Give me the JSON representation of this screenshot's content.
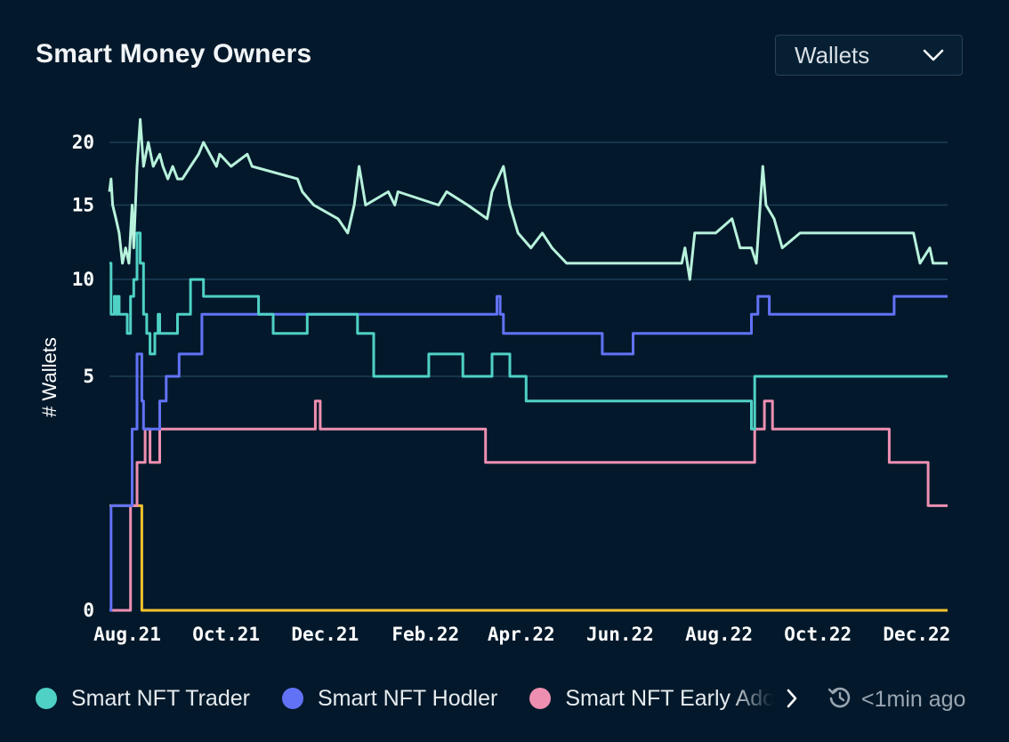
{
  "title": "Smart Money Owners",
  "dropdown": {
    "selected": "Wallets",
    "icon": "chevron-down-icon"
  },
  "refresh": {
    "text": "<1min ago",
    "icon": "refresh-clock-icon"
  },
  "legend_next_icon": "chevron-right-icon",
  "colors": {
    "background": "#03192b",
    "grid": "#1d3d55",
    "Smart Money (total)": "#b8f2dc",
    "Smart NFT Trader": "#4fd1c5",
    "Smart NFT Hodler": "#6272f7",
    "Smart NFT Early Adopter": "#ee8fb1",
    "Other": "#f2c12e"
  },
  "chart_data": {
    "type": "line",
    "title": "Smart Money Owners",
    "xlabel": "",
    "ylabel": "# Wallets",
    "x_type": "date",
    "xlim": [
      "2021-08-01",
      "2022-12-31"
    ],
    "ylim": [
      0,
      20
    ],
    "y_scale": "sqrt",
    "y_ticks": [
      0,
      5,
      10,
      15,
      20
    ],
    "x_ticks": [
      "Aug.21",
      "Oct.21",
      "Dec.21",
      "Feb.22",
      "Apr.22",
      "Jun.22",
      "Aug.22",
      "Oct.22",
      "Dec.22"
    ],
    "x_tick_dates": [
      "2021-08-01",
      "2021-10-01",
      "2021-12-01",
      "2022-02-01",
      "2022-04-01",
      "2022-06-01",
      "2022-08-01",
      "2022-10-01",
      "2022-12-01"
    ],
    "grid": true,
    "legend": "bottom",
    "series": [
      {
        "id": "total",
        "step": false,
        "points": [
          [
            "2021-08-01",
            16
          ],
          [
            "2021-08-02",
            17
          ],
          [
            "2021-08-03",
            15
          ],
          [
            "2021-08-05",
            14
          ],
          [
            "2021-08-07",
            13
          ],
          [
            "2021-08-09",
            11
          ],
          [
            "2021-08-11",
            12
          ],
          [
            "2021-08-13",
            11
          ],
          [
            "2021-08-15",
            15
          ],
          [
            "2021-08-16",
            12
          ],
          [
            "2021-08-18",
            18
          ],
          [
            "2021-08-20",
            22
          ],
          [
            "2021-08-22",
            18
          ],
          [
            "2021-08-25",
            20
          ],
          [
            "2021-08-28",
            18
          ],
          [
            "2021-09-01",
            19
          ],
          [
            "2021-09-03",
            18
          ],
          [
            "2021-09-06",
            17
          ],
          [
            "2021-09-09",
            18
          ],
          [
            "2021-09-12",
            17
          ],
          [
            "2021-09-15",
            17
          ],
          [
            "2021-09-20",
            18
          ],
          [
            "2021-09-25",
            19
          ],
          [
            "2021-09-28",
            20
          ],
          [
            "2021-10-06",
            18
          ],
          [
            "2021-10-08",
            19
          ],
          [
            "2021-10-15",
            18
          ],
          [
            "2021-10-25",
            19
          ],
          [
            "2021-10-28",
            18
          ],
          [
            "2021-11-25",
            17
          ],
          [
            "2021-11-28",
            16
          ],
          [
            "2021-12-05",
            15
          ],
          [
            "2021-12-20",
            14
          ],
          [
            "2021-12-26",
            13
          ],
          [
            "2021-12-30",
            15
          ],
          [
            "2022-01-02",
            18
          ],
          [
            "2022-01-06",
            15
          ],
          [
            "2022-01-20",
            16
          ],
          [
            "2022-01-24",
            15
          ],
          [
            "2022-01-26",
            16
          ],
          [
            "2022-02-20",
            15
          ],
          [
            "2022-02-25",
            16
          ],
          [
            "2022-03-10",
            15
          ],
          [
            "2022-03-22",
            14
          ],
          [
            "2022-03-25",
            16
          ],
          [
            "2022-04-01",
            18
          ],
          [
            "2022-04-05",
            15
          ],
          [
            "2022-04-10",
            13
          ],
          [
            "2022-04-18",
            12
          ],
          [
            "2022-04-25",
            13
          ],
          [
            "2022-05-01",
            12
          ],
          [
            "2022-05-10",
            11
          ],
          [
            "2022-07-20",
            11
          ],
          [
            "2022-07-22",
            12
          ],
          [
            "2022-07-25",
            10
          ],
          [
            "2022-07-28",
            13
          ],
          [
            "2022-08-10",
            13
          ],
          [
            "2022-08-20",
            14
          ],
          [
            "2022-08-25",
            12
          ],
          [
            "2022-09-01",
            12
          ],
          [
            "2022-09-04",
            11
          ],
          [
            "2022-09-08",
            18
          ],
          [
            "2022-09-10",
            15
          ],
          [
            "2022-09-15",
            14
          ],
          [
            "2022-09-20",
            12
          ],
          [
            "2022-10-01",
            13
          ],
          [
            "2022-12-10",
            13
          ],
          [
            "2022-12-14",
            11
          ],
          [
            "2022-12-20",
            12
          ],
          [
            "2022-12-22",
            11
          ]
        ]
      },
      {
        "name": "Smart NFT Trader",
        "step": true,
        "points": [
          [
            "2021-08-01",
            11
          ],
          [
            "2021-08-02",
            8
          ],
          [
            "2021-08-04",
            9
          ],
          [
            "2021-08-05",
            8
          ],
          [
            "2021-08-06",
            9
          ],
          [
            "2021-08-07",
            8
          ],
          [
            "2021-08-10",
            8
          ],
          [
            "2021-08-12",
            7
          ],
          [
            "2021-08-14",
            9
          ],
          [
            "2021-08-16",
            10
          ],
          [
            "2021-08-18",
            13
          ],
          [
            "2021-08-20",
            11
          ],
          [
            "2021-08-22",
            8
          ],
          [
            "2021-08-24",
            7
          ],
          [
            "2021-08-26",
            6
          ],
          [
            "2021-08-29",
            7
          ],
          [
            "2021-08-31",
            8
          ],
          [
            "2021-09-01",
            7
          ],
          [
            "2021-09-08",
            7
          ],
          [
            "2021-09-12",
            8
          ],
          [
            "2021-09-20",
            10
          ],
          [
            "2021-09-28",
            9
          ],
          [
            "2021-11-01",
            8
          ],
          [
            "2021-11-10",
            7
          ],
          [
            "2021-12-01",
            8
          ],
          [
            "2022-01-01",
            7
          ],
          [
            "2022-01-11",
            5
          ],
          [
            "2022-02-14",
            6
          ],
          [
            "2022-03-07",
            5
          ],
          [
            "2022-03-25",
            6
          ],
          [
            "2022-04-05",
            5
          ],
          [
            "2022-04-15",
            4
          ],
          [
            "2022-09-01",
            3
          ],
          [
            "2022-09-03",
            5
          ]
        ]
      },
      {
        "name": "Smart NFT Hodler",
        "step": true,
        "points": [
          [
            "2021-08-01",
            0
          ],
          [
            "2021-08-02",
            1
          ],
          [
            "2021-08-15",
            3
          ],
          [
            "2021-08-18",
            6
          ],
          [
            "2021-08-21",
            4
          ],
          [
            "2021-08-22",
            3
          ],
          [
            "2021-09-01",
            4
          ],
          [
            "2021-09-05",
            5
          ],
          [
            "2021-09-13",
            6
          ],
          [
            "2021-09-27",
            8
          ],
          [
            "2022-03-28",
            9
          ],
          [
            "2022-03-30",
            8
          ],
          [
            "2022-04-01",
            7
          ],
          [
            "2022-06-01",
            6
          ],
          [
            "2022-06-20",
            7
          ],
          [
            "2022-09-01",
            8
          ],
          [
            "2022-09-05",
            9
          ],
          [
            "2022-09-12",
            8
          ],
          [
            "2022-11-28",
            9
          ]
        ]
      },
      {
        "name": "Smart NFT Early Adopter",
        "step": true,
        "points": [
          [
            "2021-08-01",
            0
          ],
          [
            "2021-08-14",
            1
          ],
          [
            "2021-08-18",
            2
          ],
          [
            "2021-08-23",
            3
          ],
          [
            "2021-08-26",
            2
          ],
          [
            "2021-09-01",
            3
          ],
          [
            "2021-12-06",
            4
          ],
          [
            "2021-12-09",
            3
          ],
          [
            "2022-03-21",
            2
          ],
          [
            "2022-09-03",
            3
          ],
          [
            "2022-09-09",
            4
          ],
          [
            "2022-09-14",
            3
          ],
          [
            "2022-11-25",
            2
          ],
          [
            "2022-12-19",
            1
          ]
        ]
      },
      {
        "id": "other",
        "step": true,
        "points": [
          [
            "2021-08-01",
            1
          ],
          [
            "2021-08-21",
            0
          ],
          [
            "2022-12-31",
            0
          ]
        ]
      }
    ]
  },
  "legend": [
    {
      "label": "Smart NFT Trader",
      "color": "#4fd1c5"
    },
    {
      "label": "Smart NFT Hodler",
      "color": "#6272f7"
    },
    {
      "label": "Smart NFT Early Adopter",
      "color": "#ee8fb1"
    }
  ]
}
